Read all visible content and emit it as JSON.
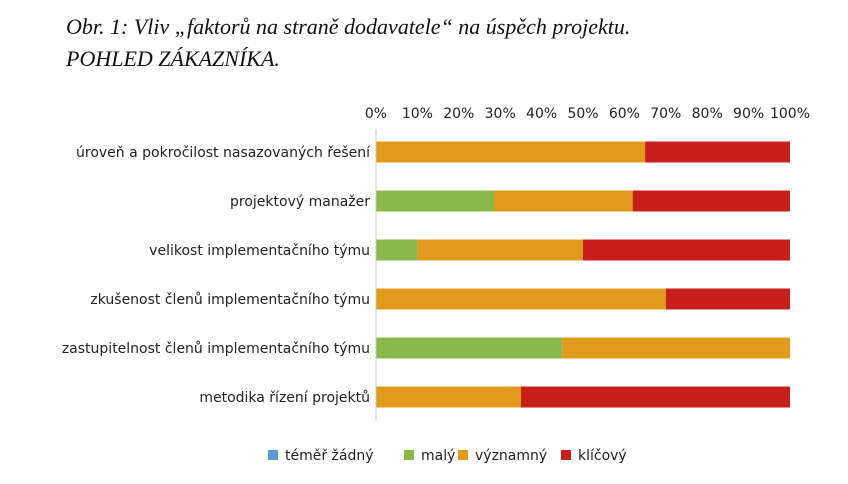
{
  "title": {
    "line1": "Obr. 1: Vliv „faktorů na straně dodavatele“ na úspěch projektu.",
    "line2": "POHLED ZÁKAZNÍKA."
  },
  "chart_data": {
    "type": "bar",
    "orientation": "horizontal",
    "stacked": "percent",
    "categories": [
      "úroveň a pokročilost nasazovaných řešení",
      "projektový manažer",
      "velikost implementačního týmu",
      "zkušenost členů implementačního týmu",
      "zastupitelnost členů implementačního týmu",
      "metodika řízení projektů"
    ],
    "series": [
      {
        "name": "téměř žádný",
        "color": "#5b9bd5",
        "values": [
          0,
          0,
          0,
          0,
          0,
          0
        ]
      },
      {
        "name": "malý",
        "color": "#8ab94a",
        "values": [
          0,
          28.5,
          10,
          0,
          45,
          0
        ]
      },
      {
        "name": "významný",
        "color": "#e29a1c",
        "values": [
          65,
          33.5,
          40,
          70,
          55,
          35
        ]
      },
      {
        "name": "klíčový",
        "color": "#c71f19",
        "values": [
          35,
          38,
          50,
          30,
          0,
          65
        ]
      }
    ],
    "xlim": [
      0,
      100
    ],
    "xticks": [
      "0%",
      "10%",
      "20%",
      "30%",
      "40%",
      "50%",
      "60%",
      "70%",
      "80%",
      "90%",
      "100%"
    ],
    "x_axis_position": "top",
    "grid": false,
    "legend": "bottom"
  }
}
